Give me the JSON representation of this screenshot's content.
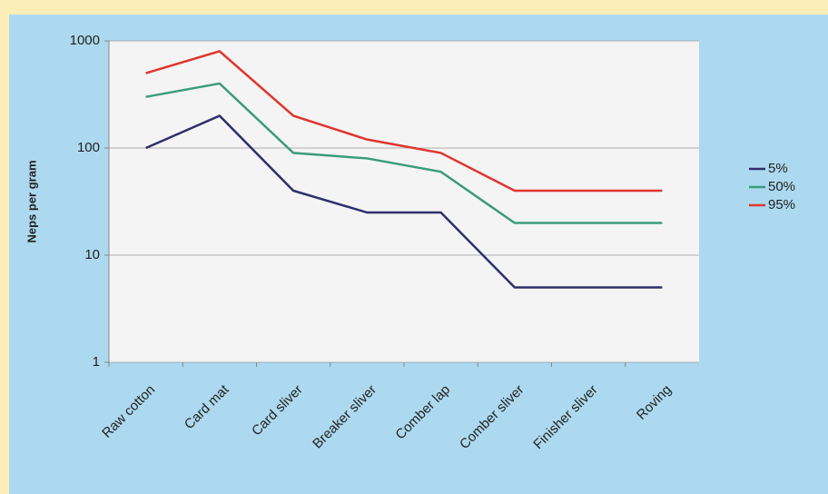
{
  "chart_data": {
    "type": "line",
    "y_label": "Neps per gram",
    "categories": [
      "Raw cotton",
      "Card mat",
      "Card sliver",
      "Breaker sliver",
      "Comber  lap",
      "Comber sliver",
      "Finisher sliver",
      "Roving"
    ],
    "series": [
      {
        "name": "5%",
        "color": "#2f2f6b",
        "values": [
          100,
          200,
          40,
          25,
          25,
          5,
          5,
          5
        ]
      },
      {
        "name": "50%",
        "color": "#3b9b7c",
        "values": [
          300,
          400,
          90,
          80,
          60,
          20,
          20,
          20
        ]
      },
      {
        "name": "95%",
        "color": "#e0352f",
        "values": [
          500,
          800,
          200,
          120,
          90,
          40,
          40,
          40
        ]
      }
    ],
    "ylim": [
      1,
      1000
    ],
    "yticks": [
      1,
      10,
      100,
      1000
    ],
    "log_y": true,
    "grid": true,
    "legend": "right"
  }
}
